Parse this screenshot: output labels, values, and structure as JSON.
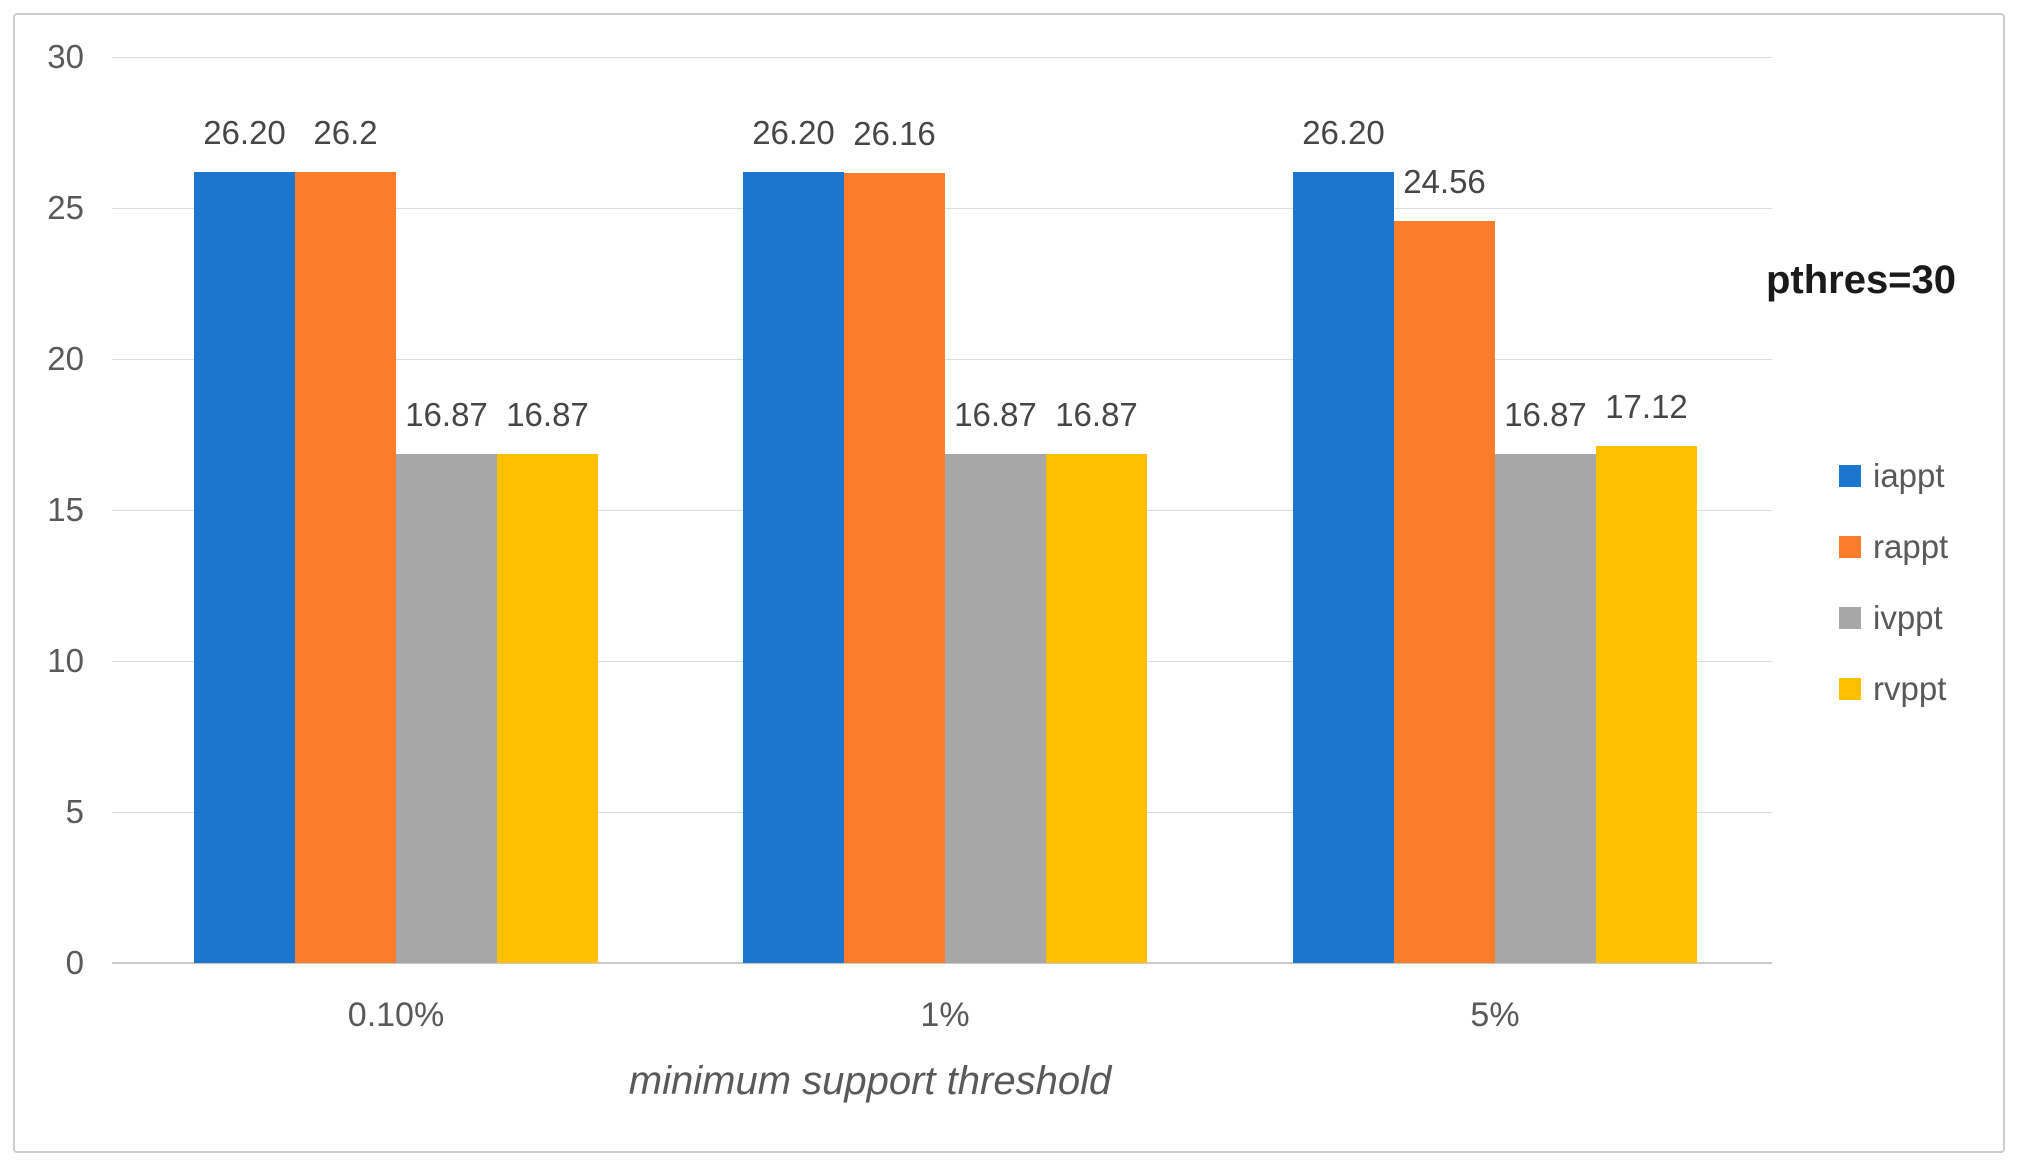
{
  "annotation": "pthres=30",
  "chart_data": {
    "type": "bar",
    "title": "",
    "xlabel": "minimum support threshold",
    "ylabel": "",
    "categories": [
      "0.10%",
      "1%",
      "5%"
    ],
    "series": [
      {
        "name": "iappt",
        "color": "#1c76ce",
        "values": [
          26.2,
          26.2,
          26.2
        ],
        "labels": [
          "26.20",
          "26.20",
          "26.20"
        ]
      },
      {
        "name": "rappt",
        "color": "#fb7d2b",
        "values": [
          26.2,
          26.16,
          24.56
        ],
        "labels": [
          "26.2",
          "26.16",
          "24.56"
        ]
      },
      {
        "name": "ivppt",
        "color": "#a7a7a7",
        "values": [
          16.87,
          16.87,
          16.87
        ],
        "labels": [
          "16.87",
          "16.87",
          "16.87"
        ]
      },
      {
        "name": "rvppt",
        "color": "#ffc002",
        "values": [
          16.87,
          16.87,
          17.12
        ],
        "labels": [
          "16.87",
          "16.87",
          "17.12"
        ]
      }
    ],
    "ylim": [
      0,
      30
    ],
    "yticks": [
      0,
      5,
      10,
      15,
      20,
      25,
      30
    ],
    "grid": true,
    "legend_position": "right",
    "data_labels": true
  }
}
